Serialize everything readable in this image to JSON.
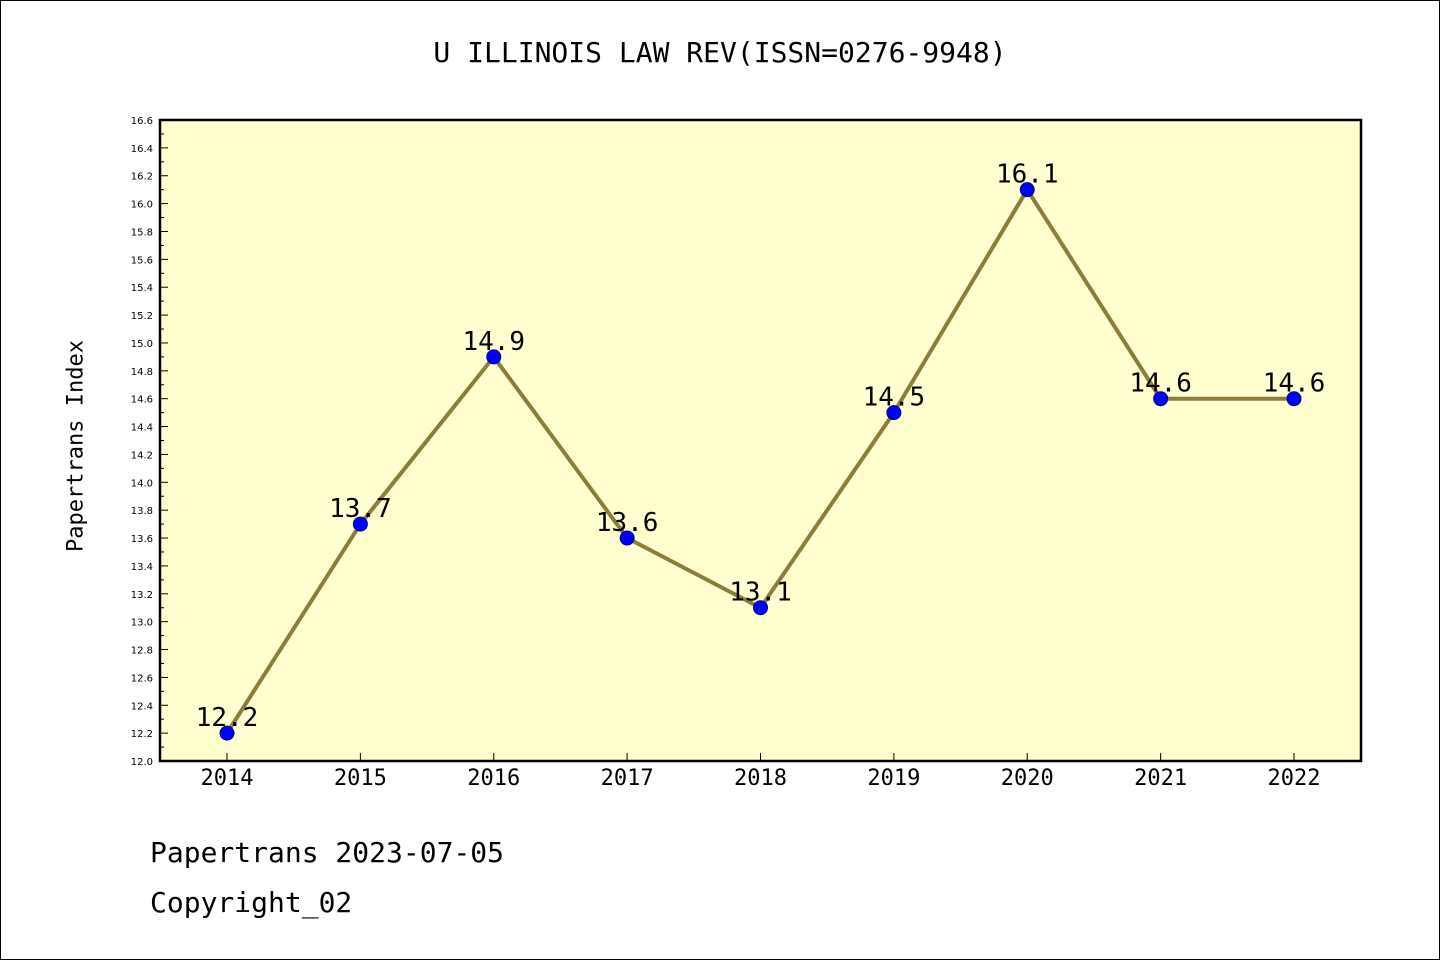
{
  "chart_data": {
    "type": "line",
    "title": "U ILLINOIS LAW REV(ISSN=0276-9948)",
    "xlabel": "",
    "ylabel": "Papertrans Index",
    "categories": [
      "2014",
      "2015",
      "2016",
      "2017",
      "2018",
      "2019",
      "2020",
      "2021",
      "2022"
    ],
    "values": [
      12.2,
      13.7,
      14.9,
      13.6,
      13.1,
      14.5,
      16.1,
      14.6,
      14.6
    ],
    "data_labels": [
      "12.2",
      "13.7",
      "14.9",
      "13.6",
      "13.1",
      "14.5",
      "16.1",
      "14.6",
      "14.6"
    ],
    "ylim": [
      12.0,
      16.6
    ],
    "yticks": [
      "12.0",
      "12.2",
      "12.4",
      "12.6",
      "12.8",
      "13.0",
      "13.2",
      "13.4",
      "13.6",
      "13.8",
      "14.0",
      "14.2",
      "14.4",
      "14.6",
      "14.8",
      "15.0",
      "15.2",
      "15.4",
      "15.6",
      "15.8",
      "16.0",
      "16.2",
      "16.4",
      "16.6"
    ],
    "grid": false,
    "colors": {
      "plot_background": "#ffffd0",
      "line": "#8b7d3a",
      "marker": "#0000ff",
      "marker_edge": "#00008b"
    }
  },
  "footer": {
    "date_line": "Papertrans 2023-07-05",
    "copyright_line": "Copyright_02"
  }
}
